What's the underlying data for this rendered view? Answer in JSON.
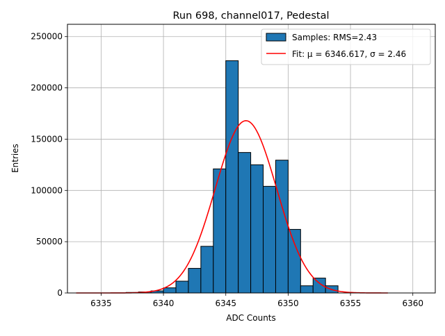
{
  "chart_data": {
    "type": "bar",
    "title": "Run 698, channel017, Pedestal",
    "xlabel": "ADC Counts",
    "ylabel": "Entries",
    "xlim": [
      6332.3,
      6361.8
    ],
    "ylim": [
      0,
      262000
    ],
    "xticks": [
      6335,
      6340,
      6345,
      6350,
      6355,
      6360
    ],
    "yticks": [
      0,
      50000,
      100000,
      150000,
      200000,
      250000
    ],
    "grid": true,
    "legend_position": "top-right",
    "histogram": {
      "name": "Samples: RMS=2.43",
      "color": "#1f77b4",
      "edgecolor": "#000000",
      "bin_edges": [
        6337,
        6338,
        6339,
        6340,
        6341,
        6342,
        6343,
        6344,
        6345,
        6346,
        6347,
        6348,
        6349,
        6350,
        6351,
        6352,
        6353,
        6354
      ],
      "values": [
        500,
        1000,
        2000,
        5000,
        11500,
        24000,
        45500,
        121000,
        226500,
        137000,
        125000,
        104000,
        129500,
        62000,
        7000,
        14500,
        7000
      ]
    },
    "fit": {
      "name": "Fit: μ = 6346.617, σ = 2.46",
      "color": "#ff0000",
      "mu": 6346.617,
      "sigma": 2.46,
      "amplitude": 168000,
      "x_range": [
        6333,
        6358
      ]
    }
  }
}
